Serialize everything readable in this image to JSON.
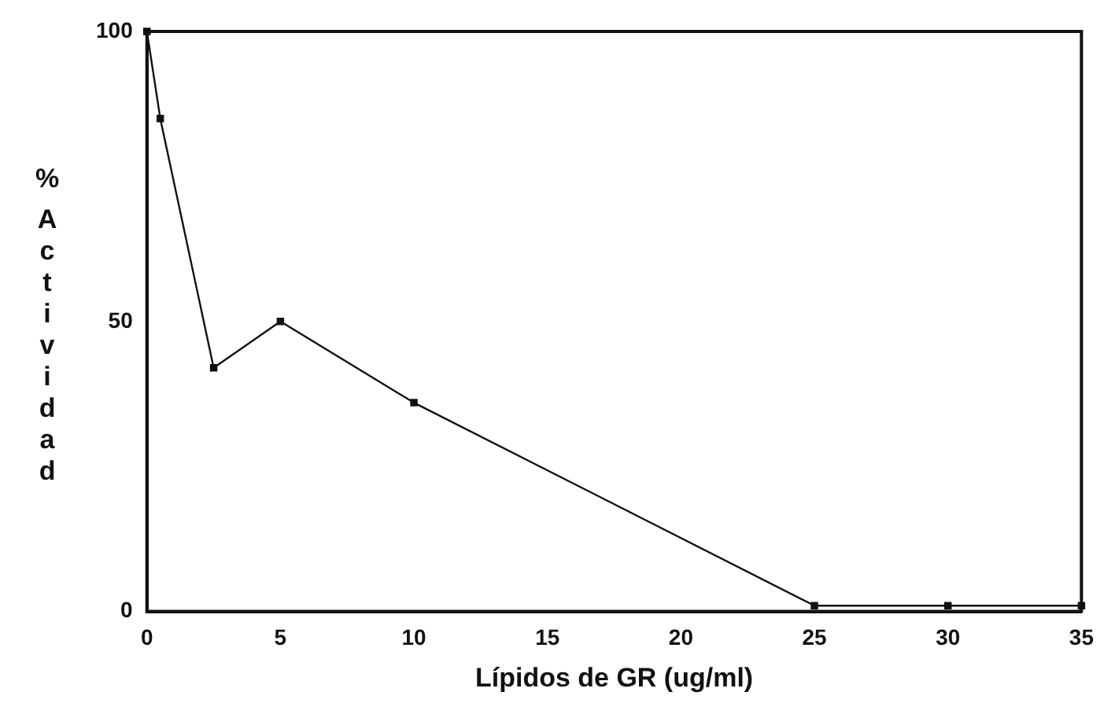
{
  "chart_data": {
    "type": "line",
    "xlabel": "Lípidos de GR (ug/ml)",
    "ylabel": "% Actividad",
    "x": [
      0,
      0.5,
      2.5,
      5,
      10,
      25,
      30,
      35
    ],
    "values": [
      100,
      85,
      42,
      50,
      36,
      1,
      1,
      1
    ],
    "color": "#111111",
    "marker": "square",
    "line_style": "solid",
    "grid": false,
    "legend": false,
    "xlim": [
      0,
      35
    ],
    "xticks": [
      0,
      5,
      10,
      15,
      20,
      25,
      30,
      35
    ],
    "ylim": [
      0,
      100
    ],
    "yticks": [
      0,
      50,
      100
    ]
  }
}
